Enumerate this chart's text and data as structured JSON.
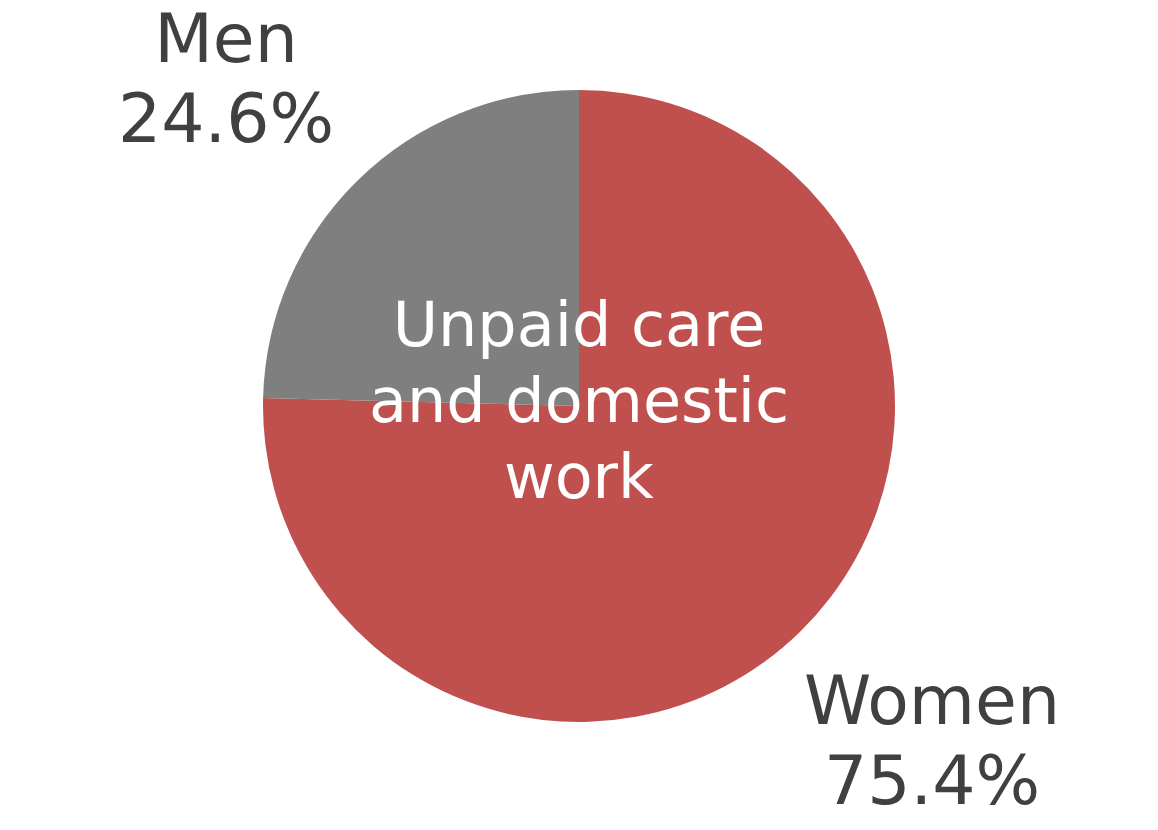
{
  "chart_data": {
    "type": "pie",
    "categories": [
      "Women",
      "Men"
    ],
    "values": [
      75.4,
      24.6
    ],
    "colors": [
      "#c0504d",
      "#7f7f7f"
    ],
    "value_labels": [
      "75.4%",
      "24.6%"
    ],
    "annotations": [
      "Unpaid care and domestic work"
    ],
    "legend": false
  }
}
